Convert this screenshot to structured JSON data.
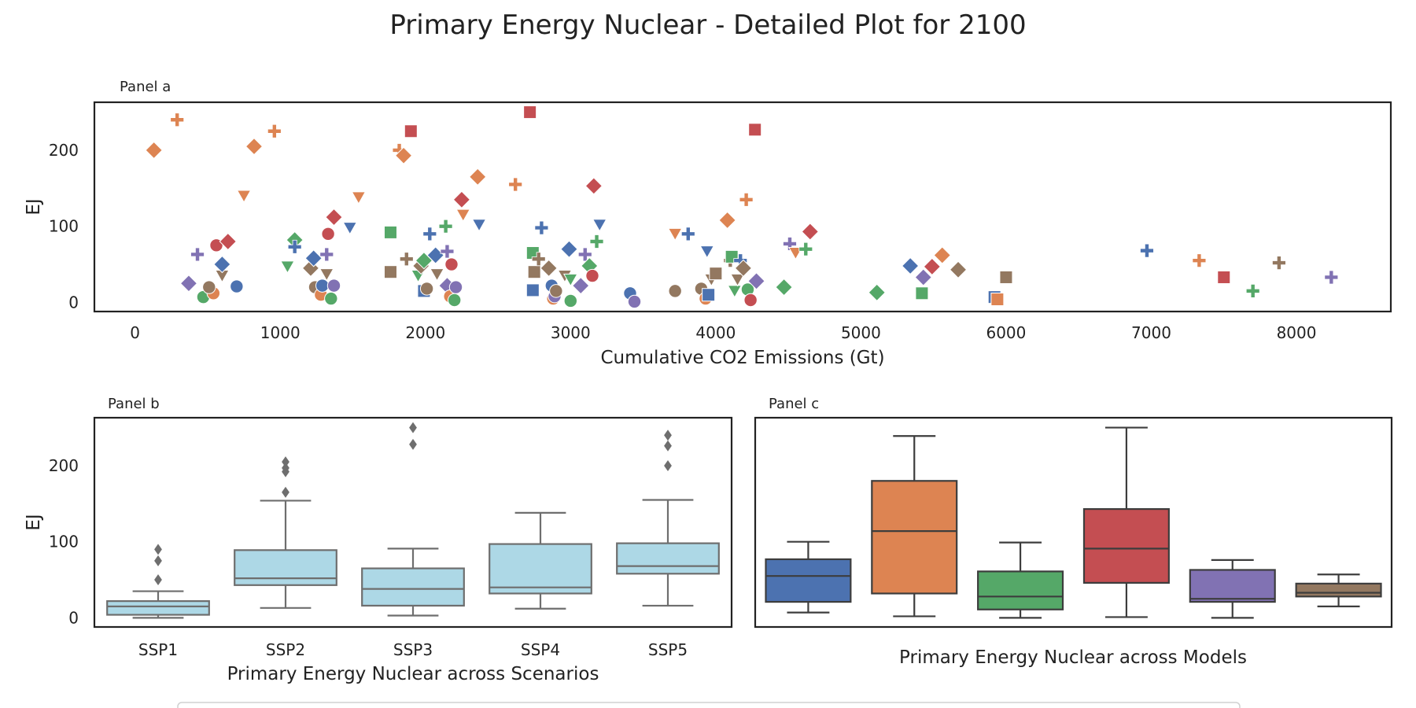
{
  "suptitle": "Primary Energy Nuclear - Detailed Plot for 2100",
  "colors": {
    "blue": "#4c72b0",
    "orange": "#dd8452",
    "green": "#55a868",
    "red": "#c44e52",
    "purple": "#8172b3",
    "brown": "#937860",
    "box_light": "#add8e6",
    "box_edge": "#6e6e6e",
    "axis": "#222222"
  },
  "chart_data": [
    {
      "type": "scatter",
      "panel_label": "Panel a",
      "xlabel": "Cumulative CO2 Emissions (Gt)",
      "ylabel": "EJ",
      "xlim": [
        -280,
        8650
      ],
      "ylim": [
        -12,
        263
      ],
      "xticks": [
        "0",
        "1000",
        "2000",
        "3000",
        "4000",
        "5000",
        "6000",
        "7000",
        "8000"
      ],
      "yticks": [
        "0",
        "100",
        "200"
      ],
      "grid": false,
      "points": [
        {
          "x": 130,
          "y": 200,
          "c": "orange",
          "m": "D"
        },
        {
          "x": 290,
          "y": 240,
          "c": "orange",
          "m": "P"
        },
        {
          "x": 430,
          "y": 63,
          "c": "purple",
          "m": "P"
        },
        {
          "x": 370,
          "y": 25,
          "c": "purple",
          "m": "D"
        },
        {
          "x": 470,
          "y": 7,
          "c": "green",
          "m": "o"
        },
        {
          "x": 540,
          "y": 12,
          "c": "orange",
          "m": "o"
        },
        {
          "x": 510,
          "y": 20,
          "c": "brown",
          "m": "o"
        },
        {
          "x": 560,
          "y": 75,
          "c": "red",
          "m": "o"
        },
        {
          "x": 600,
          "y": 35,
          "c": "brown",
          "m": "v"
        },
        {
          "x": 600,
          "y": 50,
          "c": "blue",
          "m": "D"
        },
        {
          "x": 640,
          "y": 80,
          "c": "red",
          "m": "D"
        },
        {
          "x": 700,
          "y": 21,
          "c": "blue",
          "m": "o"
        },
        {
          "x": 750,
          "y": 140,
          "c": "orange",
          "m": "v"
        },
        {
          "x": 820,
          "y": 205,
          "c": "orange",
          "m": "D"
        },
        {
          "x": 960,
          "y": 225,
          "c": "orange",
          "m": "P"
        },
        {
          "x": 1050,
          "y": 47,
          "c": "green",
          "m": "v"
        },
        {
          "x": 1100,
          "y": 82,
          "c": "green",
          "m": "D"
        },
        {
          "x": 1100,
          "y": 73,
          "c": "blue",
          "m": "P"
        },
        {
          "x": 1210,
          "y": 45,
          "c": "brown",
          "m": "D"
        },
        {
          "x": 1230,
          "y": 58,
          "c": "blue",
          "m": "D"
        },
        {
          "x": 1240,
          "y": 20,
          "c": "brown",
          "m": "o"
        },
        {
          "x": 1280,
          "y": 10,
          "c": "orange",
          "m": "o"
        },
        {
          "x": 1290,
          "y": 22,
          "c": "blue",
          "m": "o"
        },
        {
          "x": 1320,
          "y": 63,
          "c": "purple",
          "m": "P"
        },
        {
          "x": 1320,
          "y": 37,
          "c": "brown",
          "m": "v"
        },
        {
          "x": 1330,
          "y": 90,
          "c": "red",
          "m": "o"
        },
        {
          "x": 1350,
          "y": 5,
          "c": "green",
          "m": "o"
        },
        {
          "x": 1370,
          "y": 22,
          "c": "purple",
          "m": "o"
        },
        {
          "x": 1370,
          "y": 112,
          "c": "red",
          "m": "D"
        },
        {
          "x": 1480,
          "y": 98,
          "c": "blue",
          "m": "v"
        },
        {
          "x": 1540,
          "y": 138,
          "c": "orange",
          "m": "v"
        },
        {
          "x": 1760,
          "y": 40,
          "c": "brown",
          "m": "s"
        },
        {
          "x": 1760,
          "y": 92,
          "c": "green",
          "m": "s"
        },
        {
          "x": 1820,
          "y": 200,
          "c": "orange",
          "m": "P"
        },
        {
          "x": 1850,
          "y": 193,
          "c": "orange",
          "m": "D"
        },
        {
          "x": 1870,
          "y": 57,
          "c": "brown",
          "m": "P"
        },
        {
          "x": 1900,
          "y": 225,
          "c": "red",
          "m": "s"
        },
        {
          "x": 1950,
          "y": 35,
          "c": "green",
          "m": "v"
        },
        {
          "x": 1970,
          "y": 48,
          "c": "brown",
          "m": "D"
        },
        {
          "x": 1990,
          "y": 55,
          "c": "green",
          "m": "D"
        },
        {
          "x": 1990,
          "y": 15,
          "c": "blue",
          "m": "s"
        },
        {
          "x": 2010,
          "y": 18,
          "c": "brown",
          "m": "o"
        },
        {
          "x": 2030,
          "y": 90,
          "c": "blue",
          "m": "P"
        },
        {
          "x": 2070,
          "y": 62,
          "c": "blue",
          "m": "D"
        },
        {
          "x": 2080,
          "y": 37,
          "c": "brown",
          "m": "v"
        },
        {
          "x": 2140,
          "y": 100,
          "c": "green",
          "m": "P"
        },
        {
          "x": 2150,
          "y": 67,
          "c": "purple",
          "m": "P"
        },
        {
          "x": 2150,
          "y": 22,
          "c": "purple",
          "m": "D"
        },
        {
          "x": 2170,
          "y": 8,
          "c": "orange",
          "m": "o"
        },
        {
          "x": 2180,
          "y": 50,
          "c": "red",
          "m": "o"
        },
        {
          "x": 2200,
          "y": 3,
          "c": "green",
          "m": "o"
        },
        {
          "x": 2210,
          "y": 20,
          "c": "purple",
          "m": "o"
        },
        {
          "x": 2250,
          "y": 135,
          "c": "red",
          "m": "D"
        },
        {
          "x": 2260,
          "y": 115,
          "c": "orange",
          "m": "v"
        },
        {
          "x": 2360,
          "y": 165,
          "c": "orange",
          "m": "D"
        },
        {
          "x": 2370,
          "y": 102,
          "c": "blue",
          "m": "v"
        },
        {
          "x": 2620,
          "y": 155,
          "c": "orange",
          "m": "P"
        },
        {
          "x": 2720,
          "y": 250,
          "c": "red",
          "m": "s"
        },
        {
          "x": 2740,
          "y": 16,
          "c": "blue",
          "m": "s"
        },
        {
          "x": 2740,
          "y": 65,
          "c": "green",
          "m": "s"
        },
        {
          "x": 2750,
          "y": 40,
          "c": "brown",
          "m": "s"
        },
        {
          "x": 2780,
          "y": 57,
          "c": "brown",
          "m": "P"
        },
        {
          "x": 2800,
          "y": 98,
          "c": "blue",
          "m": "P"
        },
        {
          "x": 2850,
          "y": 45,
          "c": "brown",
          "m": "D"
        },
        {
          "x": 2870,
          "y": 22,
          "c": "blue",
          "m": "o"
        },
        {
          "x": 2880,
          "y": 5,
          "c": "orange",
          "m": "o"
        },
        {
          "x": 2890,
          "y": 8,
          "c": "purple",
          "m": "o"
        },
        {
          "x": 2900,
          "y": 15,
          "c": "brown",
          "m": "o"
        },
        {
          "x": 2960,
          "y": 35,
          "c": "brown",
          "m": "v"
        },
        {
          "x": 2990,
          "y": 70,
          "c": "blue",
          "m": "D"
        },
        {
          "x": 3000,
          "y": 30,
          "c": "green",
          "m": "v"
        },
        {
          "x": 3000,
          "y": 2,
          "c": "green",
          "m": "o"
        },
        {
          "x": 3070,
          "y": 22,
          "c": "purple",
          "m": "D"
        },
        {
          "x": 3100,
          "y": 63,
          "c": "purple",
          "m": "P"
        },
        {
          "x": 3130,
          "y": 48,
          "c": "green",
          "m": "D"
        },
        {
          "x": 3150,
          "y": 35,
          "c": "red",
          "m": "o"
        },
        {
          "x": 3160,
          "y": 153,
          "c": "red",
          "m": "D"
        },
        {
          "x": 3180,
          "y": 80,
          "c": "green",
          "m": "P"
        },
        {
          "x": 3200,
          "y": 102,
          "c": "blue",
          "m": "v"
        },
        {
          "x": 3410,
          "y": 12,
          "c": "blue",
          "m": "o"
        },
        {
          "x": 3440,
          "y": 1,
          "c": "purple",
          "m": "o"
        },
        {
          "x": 3720,
          "y": 15,
          "c": "brown",
          "m": "o"
        },
        {
          "x": 3720,
          "y": 90,
          "c": "orange",
          "m": "v"
        },
        {
          "x": 3810,
          "y": 90,
          "c": "blue",
          "m": "P"
        },
        {
          "x": 3900,
          "y": 18,
          "c": "brown",
          "m": "o"
        },
        {
          "x": 3930,
          "y": 5,
          "c": "orange",
          "m": "o"
        },
        {
          "x": 3940,
          "y": 67,
          "c": "blue",
          "m": "v"
        },
        {
          "x": 3950,
          "y": 10,
          "c": "blue",
          "m": "s"
        },
        {
          "x": 3970,
          "y": 30,
          "c": "brown",
          "m": "v"
        },
        {
          "x": 4000,
          "y": 38,
          "c": "brown",
          "m": "s"
        },
        {
          "x": 4080,
          "y": 108,
          "c": "orange",
          "m": "D"
        },
        {
          "x": 4100,
          "y": 55,
          "c": "brown",
          "m": "P"
        },
        {
          "x": 4110,
          "y": 60,
          "c": "green",
          "m": "s"
        },
        {
          "x": 4130,
          "y": 15,
          "c": "green",
          "m": "v"
        },
        {
          "x": 4150,
          "y": 30,
          "c": "brown",
          "m": "v"
        },
        {
          "x": 4170,
          "y": 55,
          "c": "blue",
          "m": "P"
        },
        {
          "x": 4190,
          "y": 45,
          "c": "brown",
          "m": "D"
        },
        {
          "x": 4210,
          "y": 135,
          "c": "orange",
          "m": "P"
        },
        {
          "x": 4220,
          "y": 17,
          "c": "green",
          "m": "o"
        },
        {
          "x": 4240,
          "y": 3,
          "c": "red",
          "m": "o"
        },
        {
          "x": 4270,
          "y": 227,
          "c": "red",
          "m": "s"
        },
        {
          "x": 4280,
          "y": 28,
          "c": "purple",
          "m": "D"
        },
        {
          "x": 4470,
          "y": 20,
          "c": "green",
          "m": "D"
        },
        {
          "x": 4510,
          "y": 77,
          "c": "purple",
          "m": "P"
        },
        {
          "x": 4550,
          "y": 65,
          "c": "orange",
          "m": "v"
        },
        {
          "x": 4620,
          "y": 70,
          "c": "green",
          "m": "P"
        },
        {
          "x": 4650,
          "y": 93,
          "c": "red",
          "m": "D"
        },
        {
          "x": 5110,
          "y": 13,
          "c": "green",
          "m": "D"
        },
        {
          "x": 5340,
          "y": 48,
          "c": "blue",
          "m": "D"
        },
        {
          "x": 5420,
          "y": 12,
          "c": "green",
          "m": "s"
        },
        {
          "x": 5430,
          "y": 33,
          "c": "purple",
          "m": "D"
        },
        {
          "x": 5490,
          "y": 47,
          "c": "red",
          "m": "D"
        },
        {
          "x": 5560,
          "y": 62,
          "c": "orange",
          "m": "D"
        },
        {
          "x": 5670,
          "y": 43,
          "c": "brown",
          "m": "D"
        },
        {
          "x": 5920,
          "y": 7,
          "c": "blue",
          "m": "s"
        },
        {
          "x": 5940,
          "y": 4,
          "c": "orange",
          "m": "s"
        },
        {
          "x": 6000,
          "y": 33,
          "c": "brown",
          "m": "s"
        },
        {
          "x": 6970,
          "y": 68,
          "c": "blue",
          "m": "P"
        },
        {
          "x": 7330,
          "y": 55,
          "c": "orange",
          "m": "P"
        },
        {
          "x": 7500,
          "y": 33,
          "c": "red",
          "m": "s"
        },
        {
          "x": 7700,
          "y": 15,
          "c": "green",
          "m": "P"
        },
        {
          "x": 7880,
          "y": 52,
          "c": "brown",
          "m": "P"
        },
        {
          "x": 8240,
          "y": 33,
          "c": "purple",
          "m": "P"
        }
      ]
    },
    {
      "type": "box",
      "panel_label": "Panel b",
      "xlabel": "Primary Energy Nuclear across Scenarios",
      "ylabel": "EJ",
      "ylim": [
        -12,
        263
      ],
      "yticks": [
        "0",
        "100",
        "200"
      ],
      "categories": [
        "SSP1",
        "SSP2",
        "SSP3",
        "SSP4",
        "SSP5"
      ],
      "boxes": [
        {
          "whislo": 0,
          "q1": 4,
          "med": 15,
          "q3": 22,
          "whishi": 35,
          "fliers": [
            50,
            75,
            90
          ]
        },
        {
          "whislo": 13,
          "q1": 43,
          "med": 52,
          "q3": 89,
          "whishi": 154,
          "fliers": [
            165,
            192,
            197,
            205
          ]
        },
        {
          "whislo": 3,
          "q1": 16,
          "med": 38,
          "q3": 65,
          "whishi": 91,
          "fliers": [
            228,
            250
          ]
        },
        {
          "whislo": 12,
          "q1": 32,
          "med": 40,
          "q3": 97,
          "whishi": 138,
          "fliers": []
        },
        {
          "whislo": 16,
          "q1": 58,
          "med": 68,
          "q3": 98,
          "whishi": 155,
          "fliers": [
            200,
            226,
            240
          ]
        }
      ]
    },
    {
      "type": "box",
      "panel_label": "Panel c",
      "xlabel": "Primary Energy Nuclear across Models",
      "ylim": [
        -12,
        263
      ],
      "categories": [
        "",
        "",
        "",
        "",
        "",
        ""
      ],
      "boxes": [
        {
          "whislo": 7,
          "q1": 21,
          "med": 55,
          "q3": 77,
          "whishi": 100,
          "color": "blue"
        },
        {
          "whislo": 2,
          "q1": 32,
          "med": 114,
          "q3": 180,
          "whishi": 239,
          "color": "orange"
        },
        {
          "whislo": 0,
          "q1": 11,
          "med": 28,
          "q3": 61,
          "whishi": 99,
          "color": "green"
        },
        {
          "whislo": 1,
          "q1": 46,
          "med": 91,
          "q3": 143,
          "whishi": 250,
          "color": "red"
        },
        {
          "whislo": 0,
          "q1": 21,
          "med": 25,
          "q3": 63,
          "whishi": 76,
          "color": "purple"
        },
        {
          "whislo": 15,
          "q1": 28,
          "med": 33,
          "q3": 45,
          "whishi": 57,
          "color": "brown"
        }
      ]
    }
  ]
}
